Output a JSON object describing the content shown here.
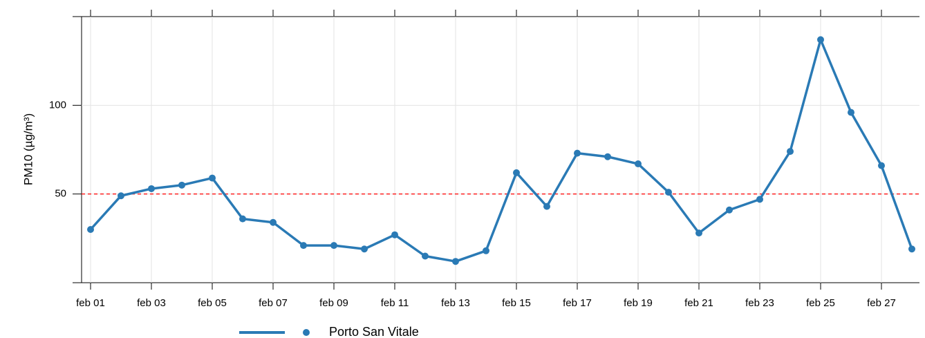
{
  "chart_data": {
    "type": "line",
    "ylabel": "PM10 (µg/m³)",
    "categories": [
      "feb 01",
      null,
      "feb 03",
      null,
      "feb 05",
      null,
      "feb 07",
      null,
      "feb 09",
      null,
      "feb 11",
      null,
      "feb 13",
      null,
      "feb 15",
      null,
      "feb 17",
      null,
      "feb 19",
      null,
      "feb 21",
      null,
      "feb 23",
      null,
      "feb 25",
      null,
      "feb 27",
      null
    ],
    "series": [
      {
        "name": "Porto San Vitale",
        "color": "#2a7ab5",
        "values": [
          30,
          49,
          53,
          55,
          59,
          36,
          34,
          21,
          21,
          19,
          27,
          15,
          12,
          18,
          62,
          43,
          73,
          71,
          67,
          51,
          28,
          41,
          47,
          74,
          137,
          96,
          66,
          19
        ]
      }
    ],
    "ylim": [
      0,
      150
    ],
    "yticks": [
      50,
      100
    ],
    "grid": true,
    "reference_line": {
      "value": 50,
      "color": "#ff2020"
    }
  }
}
